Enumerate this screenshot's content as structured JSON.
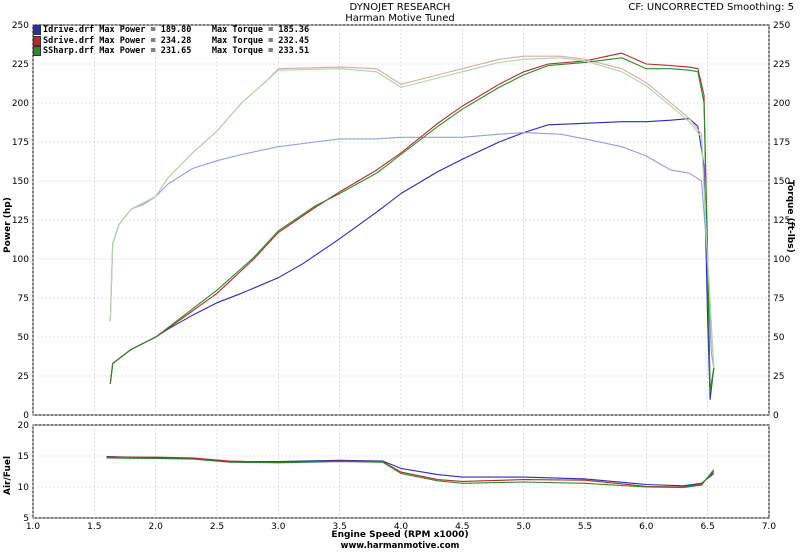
{
  "header": {
    "title": "DYNOJET RESEARCH",
    "subtitle": "Harman Motive Tuned",
    "status": "CF: UNCORRECTED  Smoothing: 5"
  },
  "legend": [
    {
      "label": "Idrive.drf Max Power = 189.80    Max Torque = 185.36",
      "color": "#2b2bb8"
    },
    {
      "label": "Sdrive.drf Max Power = 234.28    Max Torque = 232.45",
      "color": "#b82b2b"
    },
    {
      "label": "SSharp.drf Max Power = 231.65    Max Torque = 233.51",
      "color": "#2b8a2b"
    }
  ],
  "axes": {
    "power_label": "Power (hp)",
    "torque_label": "Torque (ft-lbs)",
    "afr_label": "Air/Fuel",
    "x_label": "Engine Speed (RPM x1000)"
  },
  "footer": "www.harmanmotive.com",
  "chart_data": [
    {
      "type": "line",
      "title": "DYNOJET RESEARCH",
      "xlabel": "Engine Speed (RPM x1000)",
      "ylabel": "Power (hp)",
      "y2label": "Torque (ft-lbs)",
      "xlim": [
        1.0,
        7.0
      ],
      "ylim": [
        0,
        250
      ],
      "x_ticks": [
        1.0,
        1.5,
        2.0,
        2.5,
        3.0,
        3.5,
        4.0,
        4.5,
        5.0,
        5.5,
        6.0,
        6.5,
        7.0
      ],
      "y_ticks": [
        0,
        25,
        50,
        75,
        100,
        125,
        150,
        175,
        200,
        225,
        250
      ],
      "grid": true,
      "series": [
        {
          "name": "Idrive.drf",
          "measure": "power",
          "color": "#2b2bb8",
          "x": [
            1.63,
            1.65,
            1.8,
            2.0,
            2.1,
            2.3,
            2.5,
            2.7,
            3.0,
            3.2,
            3.5,
            3.8,
            4.0,
            4.3,
            4.5,
            4.8,
            5.0,
            5.2,
            5.5,
            5.8,
            6.0,
            6.2,
            6.35,
            6.42,
            6.47,
            6.5,
            6.52,
            6.55
          ],
          "y": [
            20,
            33,
            42,
            50,
            55,
            64,
            72,
            78,
            88,
            97,
            113,
            130,
            142,
            156,
            164,
            175,
            181,
            186,
            187,
            188,
            188,
            189,
            190,
            185,
            160,
            60,
            10,
            30
          ]
        },
        {
          "name": "Idrive.drf",
          "measure": "torque",
          "color": "#9a9ae8",
          "x": [
            1.63,
            1.65,
            1.7,
            1.8,
            1.9,
            2.0,
            2.1,
            2.3,
            2.5,
            2.7,
            3.0,
            3.3,
            3.5,
            3.8,
            4.0,
            4.3,
            4.5,
            4.8,
            5.0,
            5.3,
            5.5,
            5.8,
            6.0,
            6.2,
            6.35,
            6.45,
            6.5,
            6.53,
            6.55
          ],
          "y": [
            60,
            110,
            122,
            132,
            135,
            140,
            148,
            158,
            163,
            167,
            172,
            175,
            177,
            177,
            178,
            178,
            178,
            180,
            181,
            180,
            177,
            172,
            166,
            157,
            155,
            150,
            100,
            40,
            30
          ]
        },
        {
          "name": "Sdrive.drf",
          "measure": "power",
          "color": "#b82b2b",
          "x": [
            1.63,
            1.65,
            1.8,
            2.0,
            2.2,
            2.5,
            2.8,
            3.0,
            3.3,
            3.5,
            3.8,
            4.0,
            4.3,
            4.5,
            4.8,
            5.0,
            5.2,
            5.5,
            5.8,
            6.0,
            6.2,
            6.35,
            6.42,
            6.47,
            6.5,
            6.52,
            6.55
          ],
          "y": [
            20,
            33,
            42,
            50,
            61,
            78,
            100,
            117,
            133,
            143,
            157,
            168,
            187,
            198,
            212,
            220,
            225,
            227,
            232,
            225,
            224,
            223,
            222,
            205,
            100,
            15,
            30
          ]
        },
        {
          "name": "Sdrive.drf",
          "measure": "torque",
          "color": "#e0a8a8",
          "x": [
            1.63,
            1.65,
            1.7,
            1.8,
            2.0,
            2.1,
            2.3,
            2.5,
            2.7,
            2.9,
            3.0,
            3.5,
            3.8,
            4.0,
            4.3,
            4.5,
            4.8,
            5.0,
            5.3,
            5.5,
            5.8,
            6.0,
            6.2,
            6.35,
            6.45,
            6.5,
            6.55
          ],
          "y": [
            60,
            110,
            122,
            132,
            140,
            152,
            168,
            182,
            200,
            214,
            222,
            223,
            222,
            212,
            218,
            222,
            228,
            230,
            230,
            228,
            222,
            213,
            200,
            190,
            180,
            100,
            30
          ]
        },
        {
          "name": "SSharp.drf",
          "measure": "power",
          "color": "#2b8a2b",
          "x": [
            1.63,
            1.65,
            1.8,
            2.0,
            2.2,
            2.5,
            2.8,
            3.0,
            3.3,
            3.5,
            3.8,
            4.0,
            4.3,
            4.5,
            4.8,
            5.0,
            5.2,
            5.5,
            5.8,
            6.0,
            6.2,
            6.35,
            6.42,
            6.47,
            6.5,
            6.52,
            6.55
          ],
          "y": [
            20,
            33,
            42,
            50,
            62,
            80,
            101,
            118,
            134,
            142,
            155,
            167,
            185,
            196,
            210,
            218,
            224,
            226,
            229,
            222,
            222,
            221,
            220,
            200,
            95,
            15,
            30
          ]
        },
        {
          "name": "SSharp.drf",
          "measure": "torque",
          "color": "#a8d8a8",
          "x": [
            1.63,
            1.65,
            1.7,
            1.8,
            2.0,
            2.1,
            2.3,
            2.5,
            2.7,
            2.9,
            3.0,
            3.5,
            3.8,
            4.0,
            4.3,
            4.5,
            4.8,
            5.0,
            5.3,
            5.5,
            5.8,
            6.0,
            6.2,
            6.35,
            6.45,
            6.5,
            6.55
          ],
          "y": [
            60,
            110,
            122,
            132,
            140,
            152,
            168,
            182,
            200,
            214,
            221,
            222,
            220,
            210,
            216,
            220,
            226,
            228,
            229,
            227,
            220,
            211,
            198,
            188,
            178,
            98,
            30
          ]
        }
      ]
    },
    {
      "type": "line",
      "ylabel": "Air/Fuel",
      "xlabel": "Engine Speed (RPM x1000)",
      "xlim": [
        1.0,
        7.0
      ],
      "ylim": [
        5,
        20
      ],
      "x_ticks": [
        1.0,
        1.5,
        2.0,
        2.5,
        3.0,
        3.5,
        4.0,
        4.5,
        5.0,
        5.5,
        6.0,
        6.5,
        7.0
      ],
      "y_ticks": [
        5,
        10,
        15,
        20
      ],
      "grid": true,
      "series": [
        {
          "name": "Idrive.drf",
          "color": "#2b2bb8",
          "x": [
            1.6,
            2.0,
            2.3,
            2.6,
            3.0,
            3.5,
            3.85,
            4.0,
            4.3,
            4.5,
            5.0,
            5.5,
            6.0,
            6.3,
            6.45,
            6.55
          ],
          "y": [
            14.9,
            14.7,
            14.6,
            14.1,
            14.1,
            14.3,
            14.2,
            13.0,
            12.0,
            11.6,
            11.6,
            11.3,
            10.4,
            10.2,
            10.6,
            12.2
          ]
        },
        {
          "name": "Sdrive.drf",
          "color": "#b82b2b",
          "x": [
            1.6,
            2.0,
            2.3,
            2.6,
            3.0,
            3.5,
            3.85,
            4.0,
            4.3,
            4.5,
            5.0,
            5.5,
            6.0,
            6.3,
            6.45,
            6.55
          ],
          "y": [
            14.8,
            14.8,
            14.7,
            14.2,
            14.0,
            14.2,
            14.1,
            12.4,
            11.2,
            10.9,
            11.2,
            11.1,
            10.1,
            10.0,
            10.5,
            12.5
          ]
        },
        {
          "name": "SSharp.drf",
          "color": "#2b8a2b",
          "x": [
            1.6,
            2.0,
            2.3,
            2.6,
            3.0,
            3.5,
            3.85,
            4.0,
            4.3,
            4.5,
            5.0,
            5.5,
            6.0,
            6.3,
            6.45,
            6.55
          ],
          "y": [
            14.7,
            14.6,
            14.5,
            14.0,
            13.9,
            14.1,
            14.0,
            12.2,
            11.0,
            10.6,
            10.8,
            10.6,
            10.0,
            9.9,
            10.3,
            12.8
          ]
        }
      ]
    }
  ]
}
